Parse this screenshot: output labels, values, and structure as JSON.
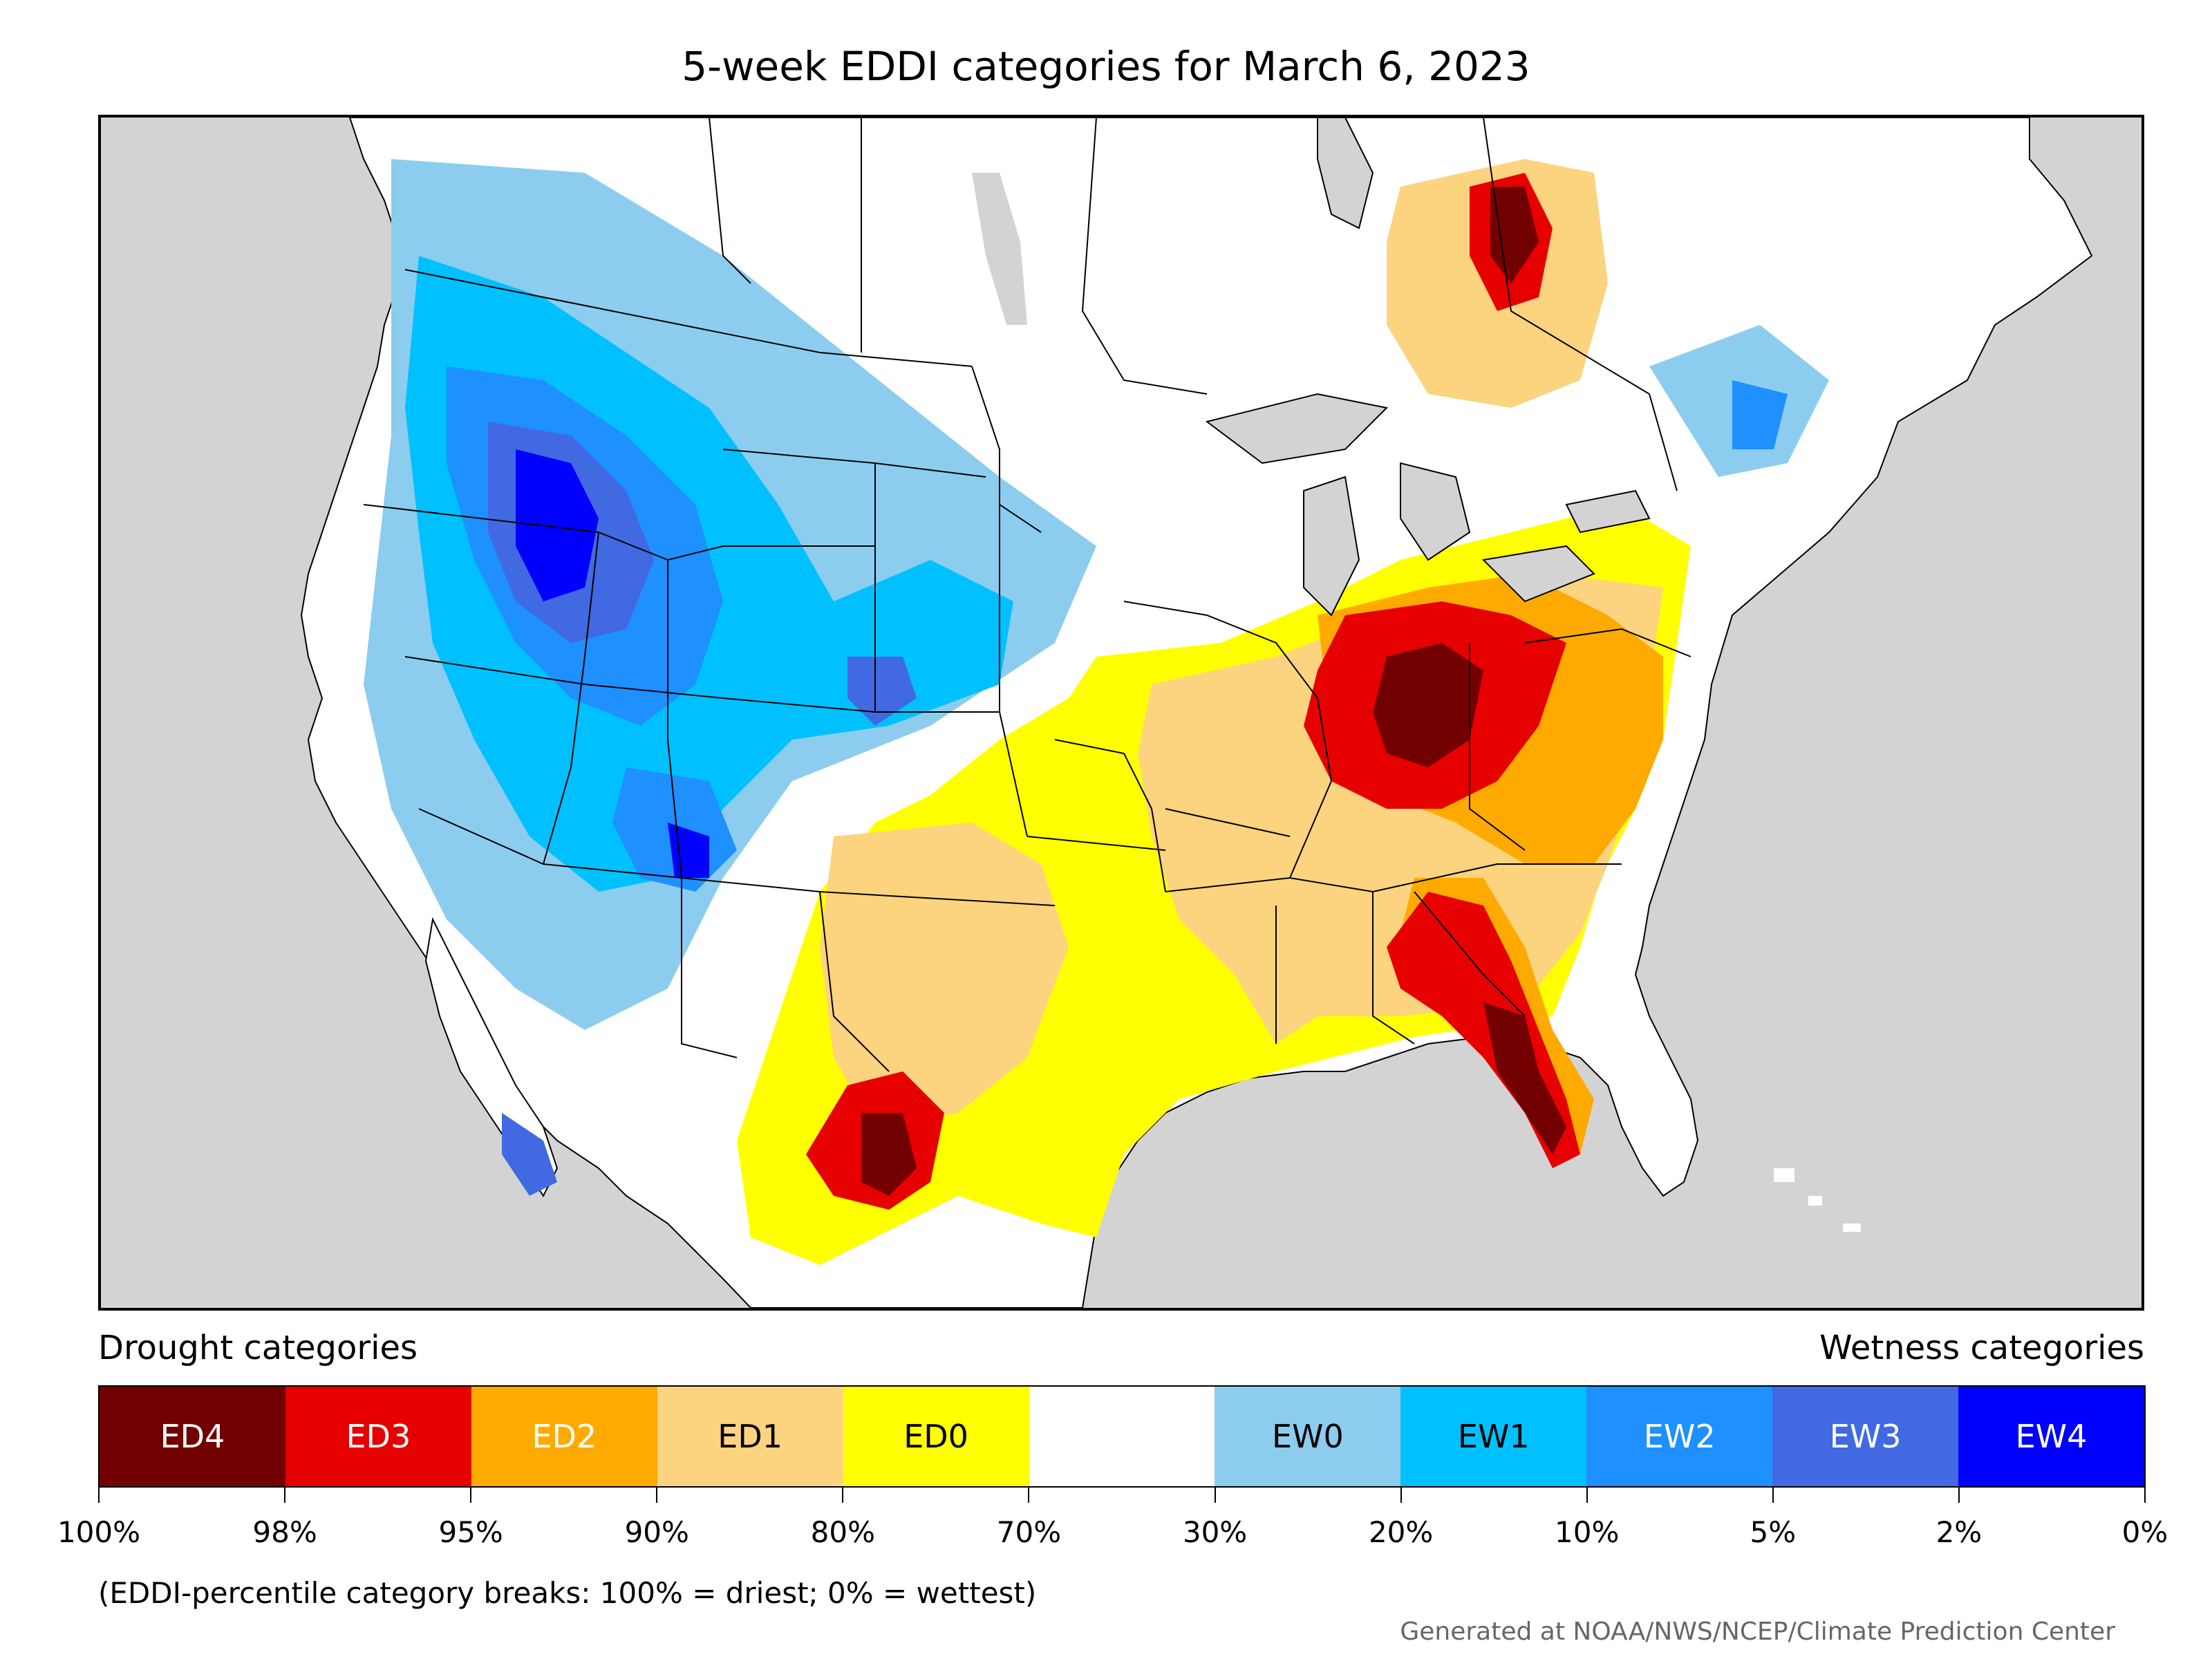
{
  "title": "5-week EDDI categories for March 6, 2023",
  "legend": {
    "left_heading": "Drought categories",
    "right_heading": "Wetness categories",
    "categories": [
      {
        "label": "ED4",
        "color": "#730000",
        "text_color": "#ffffff"
      },
      {
        "label": "ED3",
        "color": "#e60000",
        "text_color": "#ffffff"
      },
      {
        "label": "ED2",
        "color": "#ffaa00",
        "text_color": "#ffffff"
      },
      {
        "label": "ED1",
        "color": "#fcd37f",
        "text_color": "#000000"
      },
      {
        "label": "ED0",
        "color": "#ffff00",
        "text_color": "#000000"
      },
      {
        "label": "",
        "color": "#ffffff",
        "text_color": "#000000"
      },
      {
        "label": "EW0",
        "color": "#8ccdef",
        "text_color": "#000000"
      },
      {
        "label": "EW1",
        "color": "#00c0ff",
        "text_color": "#000000"
      },
      {
        "label": "EW2",
        "color": "#1e90ff",
        "text_color": "#ffffff"
      },
      {
        "label": "EW3",
        "color": "#4169e1",
        "text_color": "#ffffff"
      },
      {
        "label": "EW4",
        "color": "#0000ff",
        "text_color": "#ffffff"
      }
    ],
    "breaks": [
      "100%",
      "98%",
      "95%",
      "90%",
      "80%",
      "70%",
      "30%",
      "20%",
      "10%",
      "5%",
      "2%",
      "0%"
    ]
  },
  "note": "(EDDI-percentile category breaks: 100% = driest; 0% = wettest)",
  "credit": "Generated at NOAA/NWS/NCEP/Climate Prediction Center",
  "map_colors": {
    "ocean": "#d3d3d3",
    "land": "#ffffff",
    "lakes": "#d3d3d3",
    "borders": "#000000"
  }
}
